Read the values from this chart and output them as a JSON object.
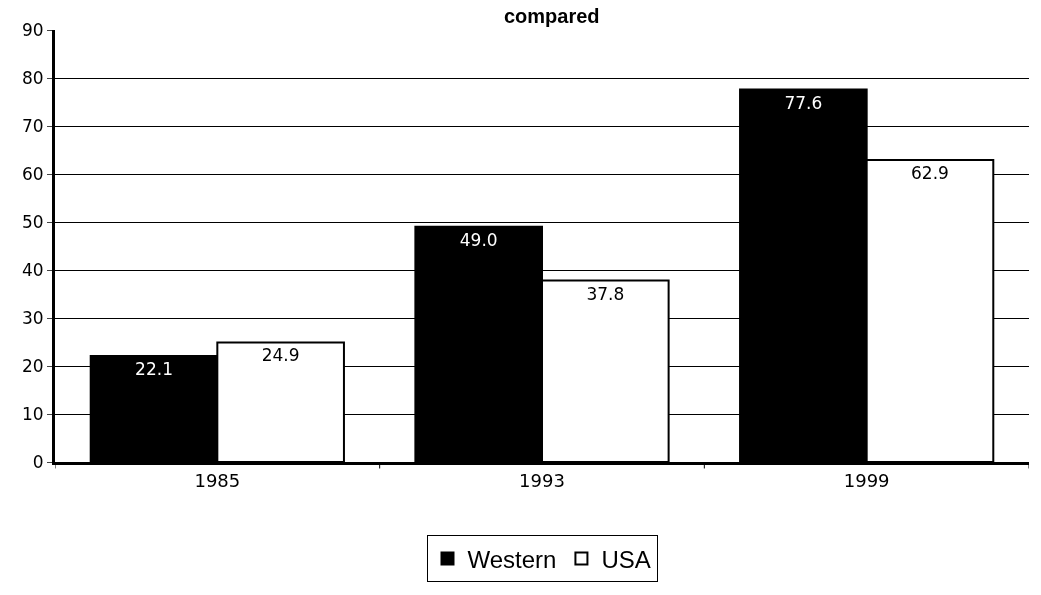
{
  "chart_data": {
    "type": "bar",
    "title": "compared",
    "categories": [
      "1985",
      "1993",
      "1999"
    ],
    "series": [
      {
        "name": "Western",
        "color": "#000000",
        "values": [
          22.1,
          49.0,
          77.6
        ],
        "value_labels": [
          "22.1",
          "49.0",
          "77.6"
        ]
      },
      {
        "name": "USA",
        "color": "#ffffff",
        "values": [
          24.9,
          37.8,
          62.9
        ],
        "value_labels": [
          "24.9",
          "37.8",
          "62.9"
        ]
      }
    ],
    "ylim": [
      0,
      90
    ],
    "yticks": [
      0,
      10,
      20,
      30,
      40,
      50,
      60,
      70,
      80,
      90
    ],
    "grid": "y",
    "legend": "bottom"
  }
}
